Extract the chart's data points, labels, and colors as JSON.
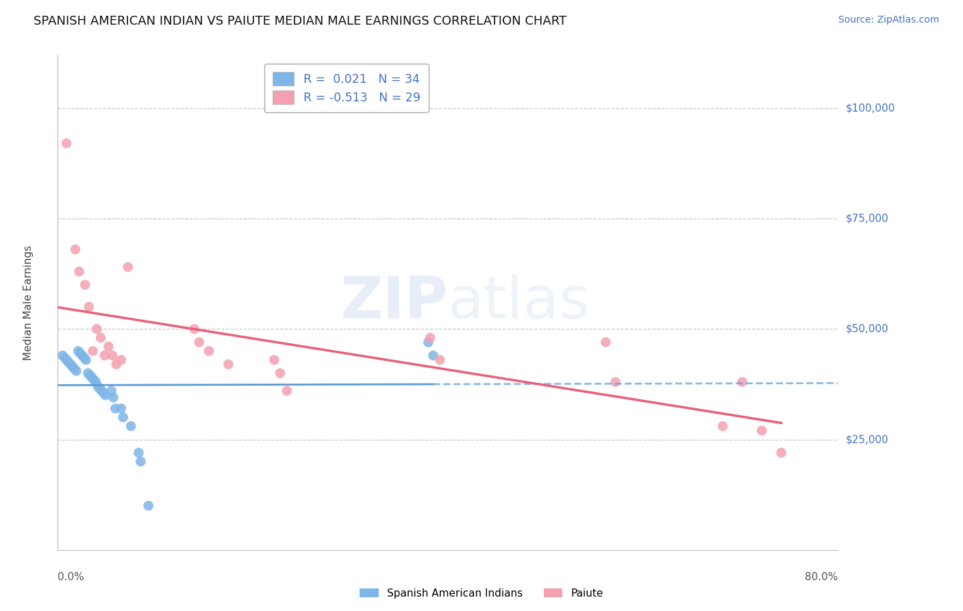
{
  "title": "SPANISH AMERICAN INDIAN VS PAIUTE MEDIAN MALE EARNINGS CORRELATION CHART",
  "source": "Source: ZipAtlas.com",
  "ylabel": "Median Male Earnings",
  "xlim": [
    0.0,
    0.8
  ],
  "ylim": [
    0,
    112000
  ],
  "blue_R": 0.021,
  "blue_N": 34,
  "pink_R": -0.513,
  "pink_N": 29,
  "blue_label": "Spanish American Indians",
  "pink_label": "Paiute",
  "blue_color": "#7EB6E8",
  "pink_color": "#F4A0B0",
  "blue_line_color": "#5B9BD5",
  "pink_line_color": "#E8607A",
  "grid_color": "#C8C8C8",
  "background_color": "#FFFFFF",
  "ytick_positions": [
    25000,
    50000,
    75000,
    100000
  ],
  "ytick_labels": [
    "$25,000",
    "$50,000",
    "$75,000",
    "$100,000"
  ],
  "blue_x": [
    0.005,
    0.007,
    0.009,
    0.011,
    0.013,
    0.015,
    0.017,
    0.019,
    0.021,
    0.023,
    0.025,
    0.027,
    0.029,
    0.031,
    0.033,
    0.035,
    0.037,
    0.039,
    0.041,
    0.043,
    0.045,
    0.047,
    0.049,
    0.055,
    0.057,
    0.059,
    0.065,
    0.067,
    0.075,
    0.083,
    0.085,
    0.093,
    0.38,
    0.385
  ],
  "blue_y": [
    44000,
    43500,
    43000,
    42500,
    42000,
    41500,
    41000,
    40500,
    45000,
    44500,
    44000,
    43500,
    43000,
    40000,
    39500,
    39000,
    38500,
    38000,
    37000,
    36500,
    36000,
    35500,
    35000,
    36000,
    34500,
    32000,
    32000,
    30000,
    28000,
    22000,
    20000,
    10000,
    47000,
    44000
  ],
  "pink_x": [
    0.009,
    0.018,
    0.022,
    0.028,
    0.032,
    0.036,
    0.04,
    0.044,
    0.048,
    0.052,
    0.056,
    0.06,
    0.065,
    0.072,
    0.14,
    0.145,
    0.155,
    0.175,
    0.222,
    0.228,
    0.235,
    0.382,
    0.392,
    0.562,
    0.572,
    0.682,
    0.702,
    0.722,
    0.742
  ],
  "pink_y": [
    92000,
    68000,
    63000,
    60000,
    55000,
    45000,
    50000,
    48000,
    44000,
    46000,
    44000,
    42000,
    43000,
    64000,
    50000,
    47000,
    45000,
    42000,
    43000,
    40000,
    36000,
    48000,
    43000,
    47000,
    38000,
    28000,
    38000,
    27000,
    22000
  ]
}
